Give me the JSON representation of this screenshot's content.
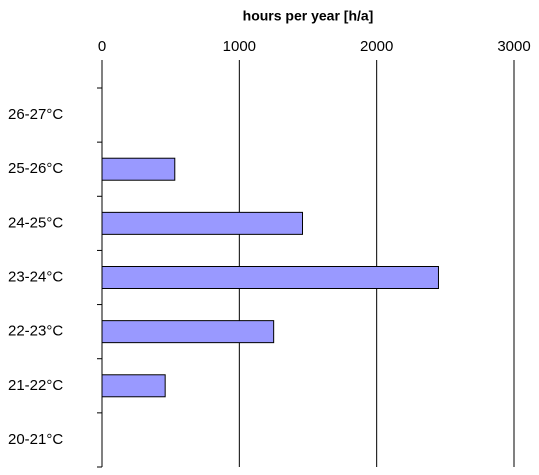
{
  "chart_data": {
    "type": "barh",
    "x_label": "hours per year [h/a]",
    "categories": [
      "26-27°C",
      "25-26°C",
      "24-25°C",
      "23-24°C",
      "22-23°C",
      "21-22°C",
      "20-21°C"
    ],
    "values": [
      0,
      530,
      1460,
      2450,
      1250,
      460,
      0
    ],
    "color": "#9999ff",
    "xlim": [
      0,
      3000
    ],
    "xticks": [
      0,
      1000,
      2000,
      3000
    ],
    "grid": true
  }
}
